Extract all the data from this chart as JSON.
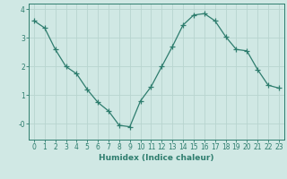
{
  "x": [
    0,
    1,
    2,
    3,
    4,
    5,
    6,
    7,
    8,
    9,
    10,
    11,
    12,
    13,
    14,
    15,
    16,
    17,
    18,
    19,
    20,
    21,
    22,
    23
  ],
  "y": [
    3.6,
    3.35,
    2.6,
    2.0,
    1.75,
    1.2,
    0.75,
    0.45,
    -0.05,
    -0.1,
    0.8,
    1.3,
    2.0,
    2.7,
    3.45,
    3.8,
    3.85,
    3.6,
    3.05,
    2.6,
    2.55,
    1.9,
    1.35,
    1.25
  ],
  "line_color": "#2e7d6e",
  "marker": "+",
  "marker_size": 4,
  "bg_color": "#d0e8e4",
  "grid_color": "#b8d4cf",
  "axis_color": "#2e7d6e",
  "tick_color": "#2e7d6e",
  "xlabel": "Humidex (Indice chaleur)",
  "xlim": [
    -0.5,
    23.5
  ],
  "ylim": [
    -0.55,
    4.2
  ],
  "yticks": [
    0,
    1,
    2,
    3,
    4
  ],
  "ytick_labels": [
    "-0",
    "1",
    "2",
    "3",
    "4"
  ],
  "xticks": [
    0,
    1,
    2,
    3,
    4,
    5,
    6,
    7,
    8,
    9,
    10,
    11,
    12,
    13,
    14,
    15,
    16,
    17,
    18,
    19,
    20,
    21,
    22,
    23
  ],
  "label_fontsize": 6.5,
  "tick_fontsize": 5.5
}
